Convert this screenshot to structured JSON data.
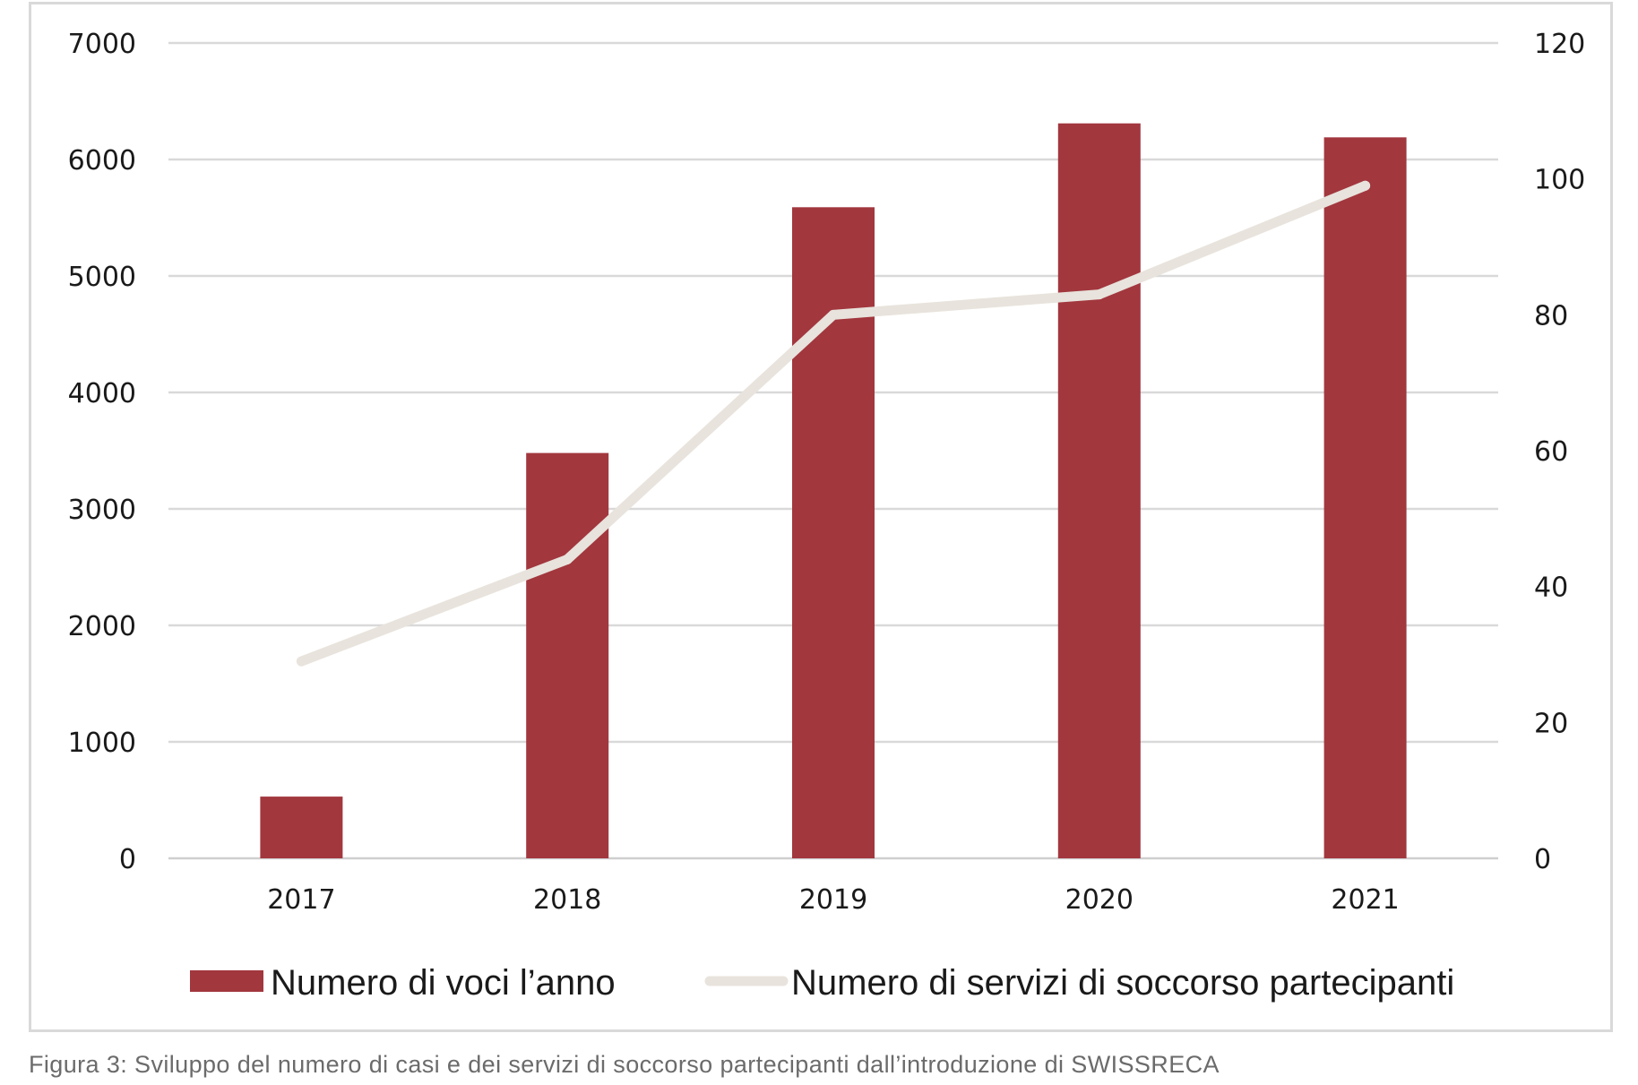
{
  "chart_data": {
    "type": "bar",
    "categories": [
      "2017",
      "2018",
      "2019",
      "2020",
      "2021"
    ],
    "series": [
      {
        "name": "Numero di voci l’anno",
        "type": "bar",
        "axis": "left",
        "color": "#a2373e",
        "values": [
          530,
          3480,
          5590,
          6310,
          6190
        ]
      },
      {
        "name": "Numero di servizi di soccorso partecipanti",
        "type": "line",
        "axis": "right",
        "color": "#e8e3dc",
        "values": [
          29,
          44,
          80,
          83,
          99
        ]
      }
    ],
    "y_left": {
      "ylim": [
        0,
        7000
      ],
      "ticks": [
        "0",
        "1000",
        "2000",
        "3000",
        "4000",
        "5000",
        "6000",
        "7000"
      ]
    },
    "y_right": {
      "ylim": [
        0,
        120
      ],
      "ticks": [
        "0",
        "20",
        "40",
        "60",
        "80",
        "100",
        "120"
      ]
    },
    "grid": true,
    "legend": "bottom"
  },
  "caption": "Figura 3: Sviluppo del numero di casi e dei servizi di soccorso partecipanti dall’introduzione di SWISSRECA"
}
